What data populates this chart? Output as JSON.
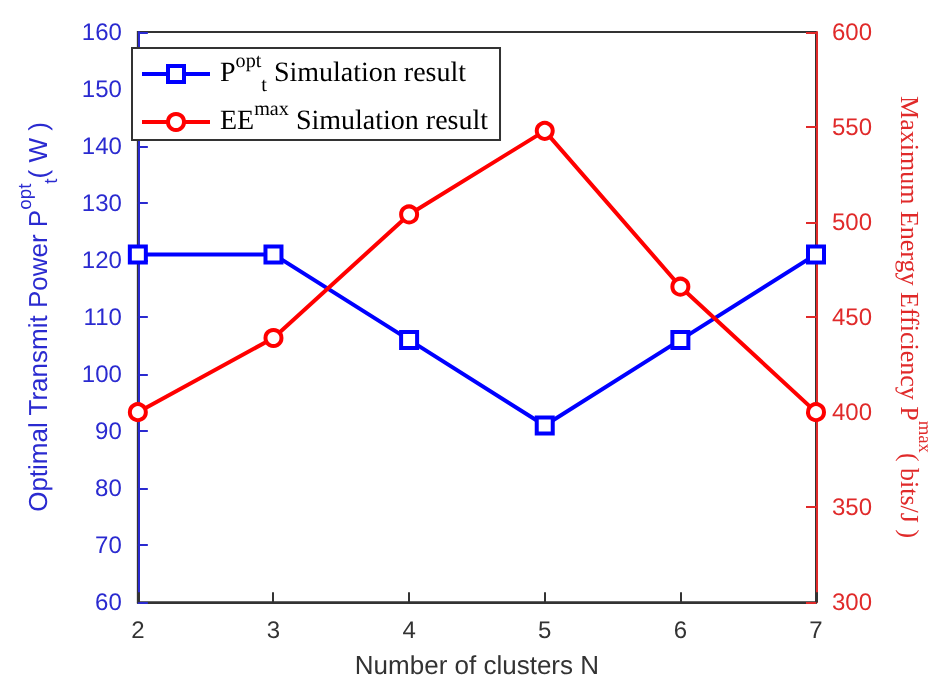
{
  "chart_data": {
    "type": "line",
    "xlabel": "Number of clusters N",
    "ylabel": "Optimal Transmit Power P$^{opt}$$_{t}$( W )",
    "y2label": "Maximum Energy Efficiency P$^{max}$( bits/J )",
    "x": [
      2,
      3,
      4,
      5,
      6,
      7
    ],
    "series": [
      {
        "name": "P$^{opt}$$_{t}$ Simulation result",
        "color": "#0000ff",
        "marker": "square",
        "values": [
          121,
          121,
          106,
          91,
          106,
          121
        ]
      },
      {
        "name": "EE$^{max}$ Simulation result",
        "color": "#ff0000",
        "marker": "circle",
        "axis": "y2",
        "values": [
          400,
          439,
          504,
          548,
          466,
          400
        ]
      }
    ],
    "xlim": [
      2,
      7
    ],
    "xticks": [
      2,
      3,
      4,
      5,
      6,
      7
    ],
    "ylim": [
      60,
      160
    ],
    "yticks": [
      60,
      70,
      80,
      90,
      100,
      110,
      120,
      130,
      140,
      150,
      160
    ],
    "y2lim": [
      300,
      600
    ],
    "y2ticks": [
      300,
      350,
      400,
      450,
      500,
      550,
      600
    ],
    "grid": false,
    "legend": "top left",
    "line_style": "solid"
  }
}
